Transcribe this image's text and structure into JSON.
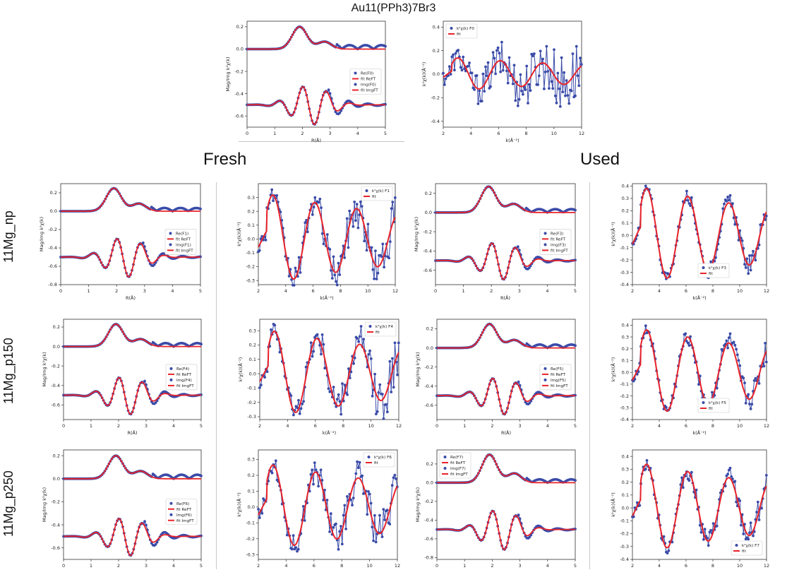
{
  "page": {
    "title": "Au11(PPh3)7Br3",
    "fresh_label": "Fresh",
    "used_label": "Used",
    "rows": [
      "11Mg_np",
      "11Mg_p150",
      "11Mg_p250"
    ]
  },
  "colors": {
    "data": "#3a4ba8",
    "fit": "#e8232a"
  },
  "chart_data": [
    {
      "id": "ref-r",
      "type": "line",
      "domain": "R",
      "xlabel": "R(Å)",
      "ylabel": "Mag/Img  k²χ(k)",
      "xlim": [
        0,
        5
      ],
      "ylim": [
        -0.7,
        0.25
      ],
      "xticks": [
        0,
        1,
        2,
        3,
        4,
        5
      ],
      "yticks": [
        -0.6,
        -0.4,
        -0.2,
        0.0,
        0.2
      ],
      "legend_pos": "center-right",
      "legend": [
        "Re(F0)",
        "fit ReFT",
        "Img(F0)",
        "fit ImgFT"
      ],
      "mag_peak": 0.2,
      "img_amp": 0.18,
      "offset": -0.5
    },
    {
      "id": "ref-k",
      "type": "line",
      "domain": "k",
      "xlabel": "k(Å⁻²)",
      "ylabel": "k²χ(k)(Å⁻²)",
      "xlim": [
        2,
        12
      ],
      "ylim": [
        -0.45,
        0.45
      ],
      "xticks": [
        2,
        4,
        6,
        8,
        10,
        12
      ],
      "yticks": [
        -0.4,
        -0.2,
        0.0,
        0.2,
        0.4
      ],
      "legend_pos": "top-left",
      "legend": [
        "k²χ(k) F0",
        "fit"
      ],
      "amp": 0.13,
      "noise": 0.2
    },
    {
      "id": "fresh-np-r",
      "type": "line",
      "domain": "R",
      "xlabel": "R(Å)",
      "ylabel": "Mag/Img  k²χ(k)",
      "xlim": [
        0,
        5
      ],
      "ylim": [
        -0.8,
        0.3
      ],
      "xticks": [
        0,
        1,
        2,
        3,
        4,
        5
      ],
      "yticks": [
        -0.8,
        -0.6,
        -0.4,
        -0.2,
        0.0,
        0.2
      ],
      "legend_pos": "center-right",
      "legend": [
        "Re(F1)",
        "fit ReFT",
        "Img(F1)",
        "fit ImgFT"
      ],
      "mag_peak": 0.25,
      "img_amp": 0.22,
      "offset": -0.5
    },
    {
      "id": "fresh-np-k",
      "type": "line",
      "domain": "k",
      "xlabel": "k(Å⁻²)",
      "ylabel": "k²χ(k)(Å⁻²)",
      "xlim": [
        2,
        12
      ],
      "ylim": [
        -0.33,
        0.4
      ],
      "xticks": [
        2,
        4,
        6,
        8,
        10,
        12
      ],
      "yticks": [
        -0.3,
        -0.2,
        -0.1,
        0.0,
        0.1,
        0.2,
        0.3
      ],
      "legend_pos": "top-right",
      "legend": [
        "k²χ(k) F1",
        "fit"
      ],
      "amp": 0.3,
      "noise": 0.12
    },
    {
      "id": "used-np-r",
      "type": "line",
      "domain": "R",
      "xlabel": "R(Å)",
      "ylabel": "Mag/Img  k²χ(k)",
      "xlim": [
        0,
        5
      ],
      "ylim": [
        -0.75,
        0.3
      ],
      "xticks": [
        0,
        1,
        2,
        3,
        4,
        5
      ],
      "yticks": [
        -0.6,
        -0.4,
        -0.2,
        0.0,
        0.2
      ],
      "legend_pos": "center-right",
      "legend": [
        "Re(F3)",
        "fit ReFT",
        "Img(F3)",
        "fit ImgFT"
      ],
      "mag_peak": 0.27,
      "img_amp": 0.2,
      "offset": -0.5
    },
    {
      "id": "used-np-k",
      "type": "line",
      "domain": "k",
      "xlabel": "k(Å⁻²)",
      "ylabel": "k²χ(k)(Å⁻²)",
      "xlim": [
        2,
        12
      ],
      "ylim": [
        -0.4,
        0.42
      ],
      "xticks": [
        2,
        4,
        6,
        8,
        10,
        12
      ],
      "yticks": [
        -0.4,
        -0.3,
        -0.2,
        -0.1,
        0.0,
        0.1,
        0.2,
        0.3,
        0.4
      ],
      "legend_pos": "bottom-center",
      "legend": [
        "k²χ(k) F3",
        "fit"
      ],
      "amp": 0.36,
      "noise": 0.06
    },
    {
      "id": "fresh-p150-r",
      "type": "line",
      "domain": "R",
      "xlabel": "R(Å)",
      "ylabel": "Mag/Img  k²χ(k)",
      "xlim": [
        0,
        5
      ],
      "ylim": [
        -0.75,
        0.28
      ],
      "xticks": [
        0,
        1,
        2,
        3,
        4,
        5
      ],
      "yticks": [
        -0.6,
        -0.4,
        -0.2,
        0.0,
        0.2
      ],
      "legend_pos": "center-right",
      "legend": [
        "Re(F4)",
        "fit ReFT",
        "Img(F4)",
        "fit ImgFT"
      ],
      "mag_peak": 0.23,
      "img_amp": 0.2,
      "offset": -0.5
    },
    {
      "id": "fresh-p150-k",
      "type": "line",
      "domain": "k",
      "xlabel": "k(Å⁻²)",
      "ylabel": "k²χ(k)(Å⁻²)",
      "xlim": [
        2,
        12
      ],
      "ylim": [
        -0.32,
        0.38
      ],
      "xticks": [
        2,
        4,
        6,
        8,
        10,
        12
      ],
      "yticks": [
        -0.3,
        -0.2,
        -0.1,
        0.0,
        0.1,
        0.2,
        0.3
      ],
      "legend_pos": "top-right",
      "legend": [
        "k²χ(k) F4",
        "fit"
      ],
      "amp": 0.28,
      "noise": 0.12
    },
    {
      "id": "used-p150-r",
      "type": "line",
      "domain": "R",
      "xlabel": "R(Å)",
      "ylabel": "Mag/Img  k²χ(k)",
      "xlim": [
        0,
        5
      ],
      "ylim": [
        -0.75,
        0.3
      ],
      "xticks": [
        0,
        1,
        2,
        3,
        4,
        5
      ],
      "yticks": [
        -0.6,
        -0.4,
        -0.2,
        0.0,
        0.2
      ],
      "legend_pos": "center-right",
      "legend": [
        "Re(F5)",
        "fit ReFT",
        "Img(F5)",
        "fit ImgFT"
      ],
      "mag_peak": 0.25,
      "img_amp": 0.2,
      "offset": -0.5
    },
    {
      "id": "used-p150-k",
      "type": "line",
      "domain": "k",
      "xlabel": "k(Å⁻²)",
      "ylabel": "k²χ(k)(Å⁻²)",
      "xlim": [
        2,
        12
      ],
      "ylim": [
        -0.4,
        0.45
      ],
      "xticks": [
        2,
        4,
        6,
        8,
        10,
        12
      ],
      "yticks": [
        -0.4,
        -0.3,
        -0.2,
        -0.1,
        0.0,
        0.1,
        0.2,
        0.3,
        0.4
      ],
      "legend_pos": "bottom-center",
      "legend": [
        "k²χ(k) F5",
        "fit"
      ],
      "amp": 0.34,
      "noise": 0.08
    },
    {
      "id": "fresh-p250-r",
      "type": "line",
      "domain": "R",
      "xlabel": "R(Å)",
      "ylabel": "Mag/Img  k²χ(k)",
      "xlim": [
        0,
        5
      ],
      "ylim": [
        -0.7,
        0.25
      ],
      "xticks": [
        0,
        1,
        2,
        3,
        4,
        5
      ],
      "yticks": [
        -0.6,
        -0.4,
        -0.2,
        0.0,
        0.2
      ],
      "legend_pos": "center-right",
      "legend": [
        "Re(F6)",
        "fit ReFT",
        "Img(F6)",
        "fit ImgFT"
      ],
      "mag_peak": 0.2,
      "img_amp": 0.17,
      "offset": -0.5
    },
    {
      "id": "fresh-p250-k",
      "type": "line",
      "domain": "k",
      "xlabel": "k(Å⁻²)",
      "ylabel": "k²χ(k)(Å⁻²)",
      "xlim": [
        2,
        12
      ],
      "ylim": [
        -0.33,
        0.36
      ],
      "xticks": [
        2,
        4,
        6,
        8,
        10,
        12
      ],
      "yticks": [
        -0.3,
        -0.2,
        -0.1,
        0.0,
        0.1,
        0.2,
        0.3
      ],
      "legend_pos": "top-right",
      "legend": [
        "k²χ(k) F6",
        "fit"
      ],
      "amp": 0.25,
      "noise": 0.1
    },
    {
      "id": "used-p250-r",
      "type": "line",
      "domain": "R",
      "xlabel": "R(Å)",
      "ylabel": "Mag/Img  k²χ(k)",
      "xlim": [
        0,
        5
      ],
      "ylim": [
        -0.82,
        0.35
      ],
      "xticks": [
        0,
        1,
        2,
        3,
        4,
        5
      ],
      "yticks": [
        -0.8,
        -0.6,
        -0.4,
        -0.2,
        0.0,
        0.2
      ],
      "legend_pos": "top-left",
      "legend": [
        "Re(F7)",
        "fit ReFT",
        "Img(F7)",
        "fit ImgFT"
      ],
      "mag_peak": 0.3,
      "img_amp": 0.22,
      "offset": -0.5
    },
    {
      "id": "used-p250-k",
      "type": "line",
      "domain": "k",
      "xlabel": "k(Å⁻²)",
      "ylabel": "k²χ(k)(Å⁻²)",
      "xlim": [
        2,
        12
      ],
      "ylim": [
        -0.4,
        0.45
      ],
      "xticks": [
        2,
        4,
        6,
        8,
        10,
        12
      ],
      "yticks": [
        -0.4,
        -0.3,
        -0.2,
        -0.1,
        0.0,
        0.1,
        0.2,
        0.3,
        0.4
      ],
      "legend_pos": "bottom-right",
      "legend": [
        "k²χ(k) F7",
        "fit"
      ],
      "amp": 0.32,
      "noise": 0.08
    }
  ]
}
